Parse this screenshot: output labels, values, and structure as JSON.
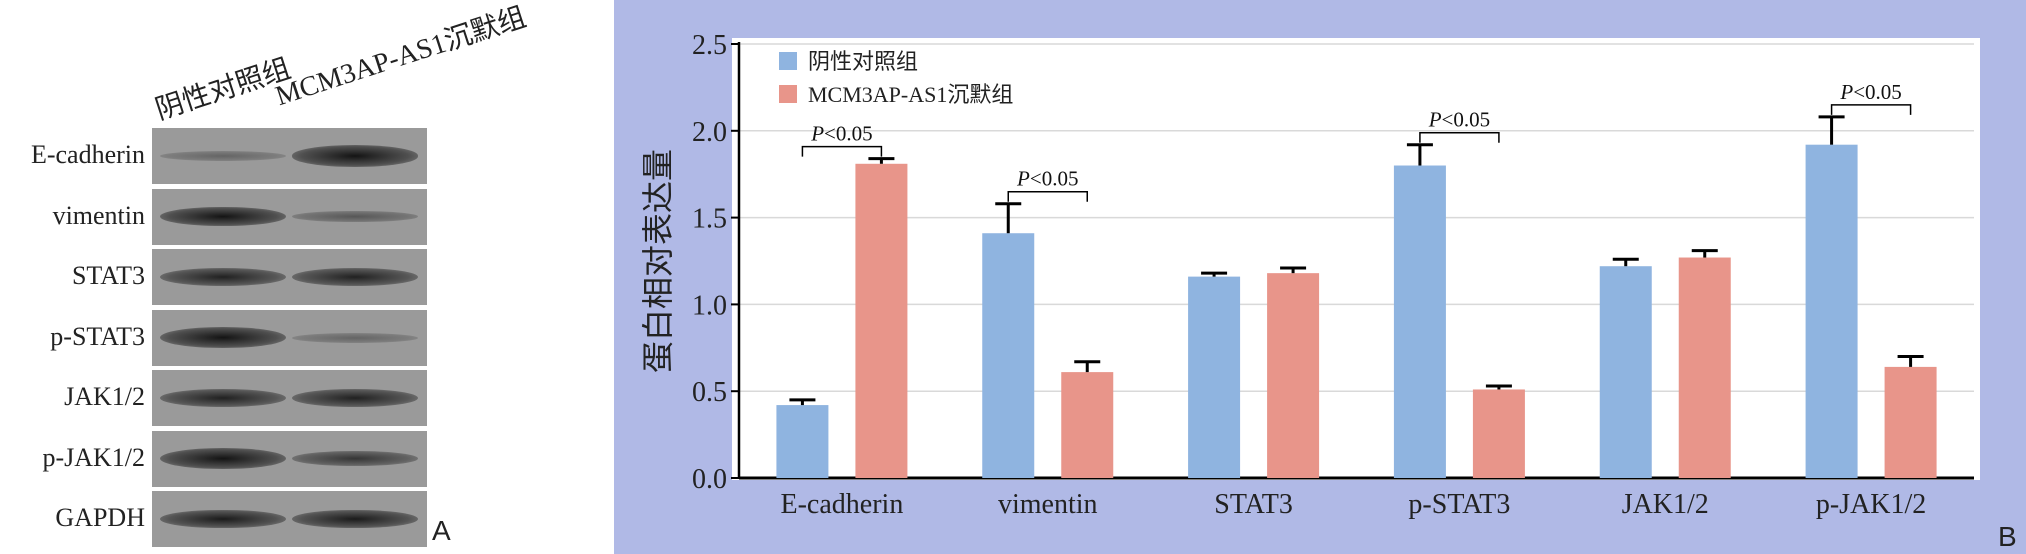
{
  "panel_a": {
    "label": "A",
    "lanes": [
      "阴性对照组",
      "MCM3AP-AS1沉默组"
    ],
    "rows": [
      {
        "name": "E-cadherin",
        "intensity": [
          0.25,
          0.95
        ]
      },
      {
        "name": "vimentin",
        "intensity": [
          0.85,
          0.35
        ]
      },
      {
        "name": "STAT3",
        "intensity": [
          0.75,
          0.75
        ]
      },
      {
        "name": "p-STAT3",
        "intensity": [
          0.95,
          0.25
        ]
      },
      {
        "name": "JAK1/2",
        "intensity": [
          0.75,
          0.75
        ]
      },
      {
        "name": "p-JAK1/2",
        "intensity": [
          0.95,
          0.6
        ]
      },
      {
        "name": "GAPDH",
        "intensity": [
          0.8,
          0.8
        ]
      }
    ]
  },
  "chart_data": {
    "type": "bar",
    "panel_label": "B",
    "ylabel": "蛋白相对表达量",
    "ylim": [
      0,
      2.5
    ],
    "yticks": [
      "0.0",
      "0.5",
      "1.0",
      "1.5",
      "2.0",
      "2.5"
    ],
    "categories": [
      "E-cadherin",
      "vimentin",
      "STAT3",
      "p-STAT3",
      "JAK1/2",
      "p-JAK1/2"
    ],
    "series": [
      {
        "name": "阴性对照组",
        "color": "#8fb4e0",
        "values": [
          0.42,
          1.41,
          1.16,
          1.8,
          1.22,
          1.92
        ],
        "errors": [
          0.03,
          0.17,
          0.02,
          0.12,
          0.04,
          0.16
        ]
      },
      {
        "name": "MCM3AP-AS1沉默组",
        "color": "#e8958a",
        "values": [
          1.81,
          0.61,
          1.18,
          0.51,
          1.27,
          0.64
        ],
        "errors": [
          0.03,
          0.06,
          0.03,
          0.02,
          0.04,
          0.06
        ]
      }
    ],
    "annotations": [
      {
        "category": "E-cadherin",
        "text_italic": "P",
        "text": "<0.05"
      },
      {
        "category": "vimentin",
        "text_italic": "P",
        "text": "<0.05"
      },
      {
        "category": "p-STAT3",
        "text_italic": "P",
        "text": "<0.05"
      },
      {
        "category": "p-JAK1/2",
        "text_italic": "P",
        "text": "<0.05"
      }
    ],
    "grid": true,
    "legend_position": "top-left",
    "background_color": "#b0b9e6"
  }
}
